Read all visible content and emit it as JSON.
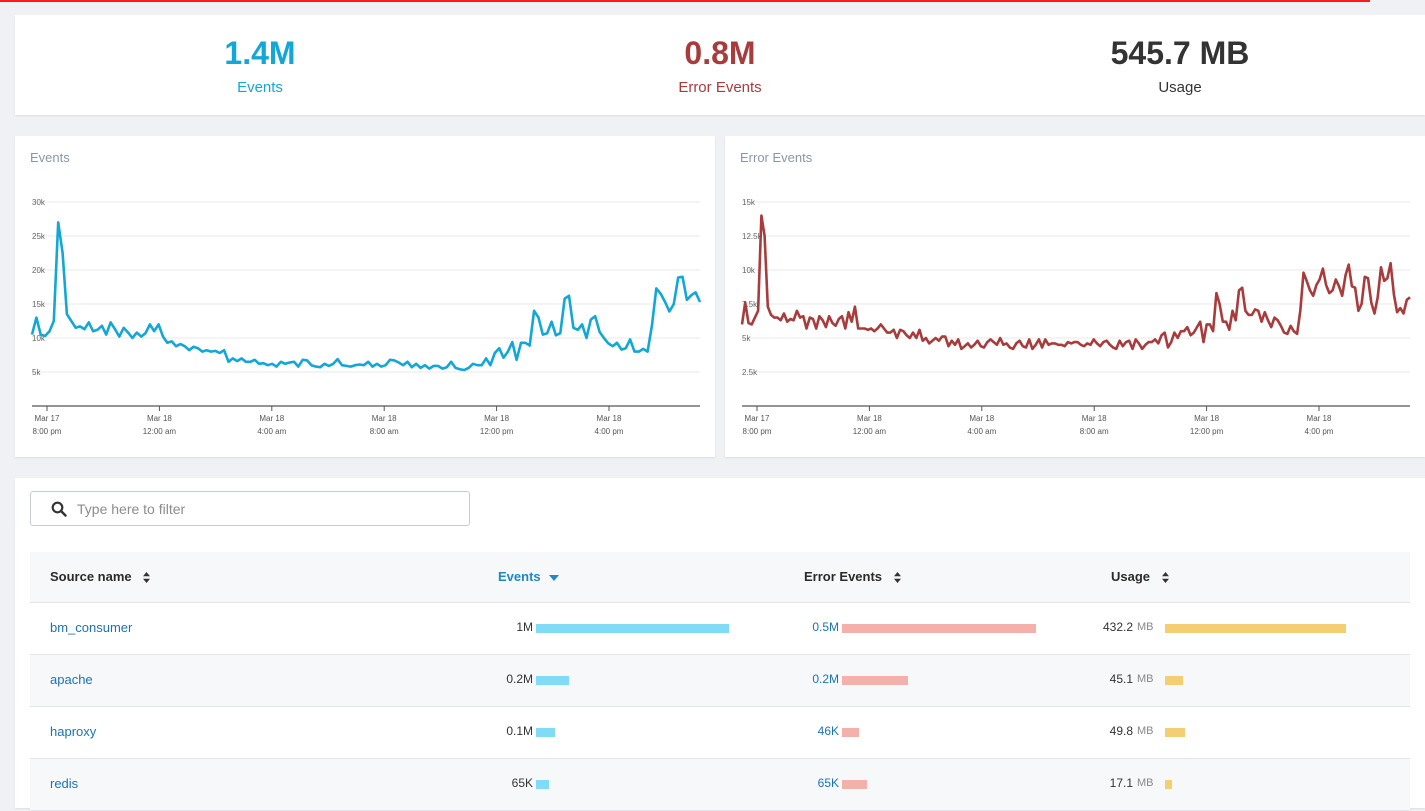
{
  "summary": {
    "events": {
      "value": "1.4M",
      "label": "Events"
    },
    "errors": {
      "value": "0.8M",
      "label": "Error Events"
    },
    "usage": {
      "value": "545.7 MB",
      "label": "Usage"
    }
  },
  "colors": {
    "events": "#13a7d8",
    "errors": "#a83c3c",
    "events_bar": "#7fdcf4",
    "errors_bar": "#f4b0aa",
    "usage_bar": "#f5ce73",
    "accent_line": "#ff1a1a"
  },
  "icons": {
    "filter": "search-icon",
    "sort": "sort-icon",
    "sort_desc": "caret-down-icon"
  },
  "chart_data": [
    {
      "type": "line",
      "title": "Events",
      "yticks": [
        "5k",
        "10k",
        "15k",
        "20k",
        "25k",
        "30k"
      ],
      "ylim": [
        0,
        30000
      ],
      "xticks": [
        {
          "line1": "Mar 17",
          "line2": "8:00 pm"
        },
        {
          "line1": "Mar 18",
          "line2": "12:00 am"
        },
        {
          "line1": "Mar 18",
          "line2": "4:00 am"
        },
        {
          "line1": "Mar 18",
          "line2": "8:00 am"
        },
        {
          "line1": "Mar 18",
          "line2": "12:00 pm"
        },
        {
          "line1": "Mar 18",
          "line2": "4:00 pm"
        }
      ],
      "grid": true,
      "series": [
        {
          "values": [
            10500,
            13000,
            10500,
            10300,
            11000,
            12500,
            27000,
            22500,
            13500,
            12500,
            11500,
            11700,
            11300,
            12300,
            11000,
            11200,
            11800,
            10500,
            12300,
            11300,
            10200,
            11500,
            10800,
            10000,
            10800,
            10200,
            10700,
            12000,
            11000,
            12000,
            10200,
            9300,
            9500,
            8800,
            9100,
            8800,
            8200,
            8700,
            8500,
            8000,
            8200,
            8000,
            8100,
            7800,
            8200,
            6500,
            7000,
            6600,
            7000,
            6500,
            6500,
            6800,
            6200,
            6300,
            6000,
            6200,
            5800,
            6500,
            6200,
            6400,
            6500,
            5800,
            6800,
            6700,
            6000,
            5800,
            5700,
            6200,
            5900,
            6200,
            6900,
            6000,
            5900,
            5800,
            6000,
            6100,
            6000,
            6500,
            5800,
            6200,
            5800,
            6000,
            6800,
            6700,
            6400,
            6000,
            6500,
            5700,
            6200,
            5600,
            6000,
            5500,
            5900,
            5900,
            5500,
            5700,
            6500,
            5600,
            5400,
            5300,
            5600,
            6200,
            6000,
            6000,
            7000,
            6000,
            7800,
            8500,
            7100,
            8000,
            9400,
            6800,
            9300,
            9300,
            8900,
            14000,
            13000,
            10500,
            10700,
            12400,
            10400,
            10700,
            15800,
            16200,
            11500,
            11200,
            12000,
            10000,
            12700,
            13200,
            10900,
            10000,
            9200,
            8800,
            9300,
            8300,
            8500,
            9800,
            8000,
            8000,
            8400,
            8000,
            11900,
            17300,
            16500,
            15300,
            13900,
            15000,
            18900,
            19000,
            15600,
            16300,
            16700,
            15300
          ]
        }
      ]
    },
    {
      "type": "line",
      "title": "Error Events",
      "yticks": [
        "2.5k",
        "5k",
        "7.5k",
        "10k",
        "12.5k",
        "15k"
      ],
      "ylim": [
        0,
        15000
      ],
      "xticks": [
        {
          "line1": "Mar 17",
          "line2": "8:00 pm"
        },
        {
          "line1": "Mar 18",
          "line2": "12:00 am"
        },
        {
          "line1": "Mar 18",
          "line2": "4:00 am"
        },
        {
          "line1": "Mar 18",
          "line2": "8:00 am"
        },
        {
          "line1": "Mar 18",
          "line2": "12:00 pm"
        },
        {
          "line1": "Mar 18",
          "line2": "4:00 pm"
        }
      ],
      "grid": true,
      "series": [
        {
          "values": [
            6000,
            7600,
            6100,
            6000,
            6500,
            7000,
            14000,
            12500,
            7300,
            6700,
            6500,
            6500,
            6300,
            6800,
            6200,
            6400,
            6300,
            7000,
            6500,
            6600,
            5700,
            6500,
            6400,
            5700,
            6600,
            6300,
            5800,
            6600,
            6100,
            5900,
            6400,
            6600,
            5700,
            6900,
            6200,
            7300,
            5700,
            5700,
            5700,
            5600,
            5700,
            5500,
            5700,
            6000,
            5700,
            5400,
            5400,
            5600,
            5000,
            5600,
            5500,
            5200,
            5000,
            5400,
            5000,
            5600,
            4800,
            5000,
            4600,
            4800,
            5000,
            4800,
            5100,
            5100,
            4400,
            4800,
            4500,
            4900,
            4200,
            4400,
            4600,
            4300,
            4500,
            4800,
            4400,
            4300,
            4700,
            4900,
            4700,
            4500,
            5000,
            4500,
            4600,
            4300,
            4200,
            4600,
            4800,
            4400,
            4300,
            4900,
            4200,
            4500,
            4900,
            4300,
            4900,
            4500,
            4600,
            4600,
            4500,
            4500,
            4400,
            4700,
            4600,
            4700,
            4700,
            4500,
            4400,
            4600,
            4500,
            4900,
            4600,
            4400,
            4700,
            4800,
            4500,
            4300,
            4200,
            4800,
            4400,
            4700,
            4800,
            4200,
            4900,
            4600,
            4200,
            4500,
            4700,
            4700,
            4900,
            4600,
            5200,
            5400,
            4300,
            4700,
            5400,
            5000,
            5500,
            5500,
            5800,
            5200,
            5400,
            5800,
            6200,
            4700,
            6000,
            6000,
            5500,
            8300,
            7500,
            6200,
            6200,
            5600,
            7000,
            6300,
            8500,
            8700,
            7000,
            6700,
            6700,
            7100,
            7000,
            6200,
            6900,
            6300,
            5800,
            6500,
            6300,
            5900,
            5400,
            5300,
            5900,
            5500,
            5300,
            7000,
            9800,
            9200,
            8500,
            8100,
            8900,
            9300,
            10100,
            8900,
            8300,
            8500,
            9300,
            8800,
            8100,
            9600,
            10400,
            8800,
            8700,
            7000,
            7500,
            9500,
            9400,
            7600,
            6800,
            8000,
            10200,
            9200,
            9400,
            10500,
            8200,
            6900,
            7200,
            6800,
            7800,
            8000
          ]
        }
      ]
    }
  ],
  "table": {
    "filter_placeholder": "Type here to filter",
    "headers": {
      "source": "Source name",
      "events": "Events",
      "errors": "Error Events",
      "usage": "Usage"
    },
    "rows": [
      {
        "name": "bm_consumer",
        "events": "1M",
        "events_frac": 1.0,
        "errors": "0.5M",
        "errors_frac": 1.0,
        "usage": "432.2",
        "usage_unit": "MB",
        "usage_frac": 1.0
      },
      {
        "name": "apache",
        "events": "0.2M",
        "events_frac": 0.17,
        "errors": "0.2M",
        "errors_frac": 0.34,
        "usage": "45.1",
        "usage_unit": "MB",
        "usage_frac": 0.1
      },
      {
        "name": "haproxy",
        "events": "0.1M",
        "events_frac": 0.1,
        "errors": "46K",
        "errors_frac": 0.09,
        "usage": "49.8",
        "usage_unit": "MB",
        "usage_frac": 0.11
      },
      {
        "name": "redis",
        "events": "65K",
        "events_frac": 0.065,
        "errors": "65K",
        "errors_frac": 0.13,
        "usage": "17.1",
        "usage_unit": "MB",
        "usage_frac": 0.04
      }
    ]
  }
}
